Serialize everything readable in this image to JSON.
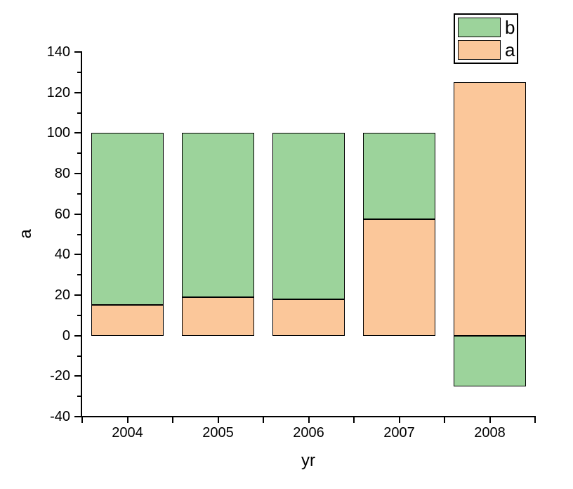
{
  "figure": {
    "background": "#ffffff",
    "text_color": "#000000"
  },
  "chart_data": {
    "type": "bar",
    "stacked": true,
    "title": "",
    "xlabel": "yr",
    "ylabel": "a",
    "categories": [
      "2004",
      "2005",
      "2006",
      "2007",
      "2008"
    ],
    "series": [
      {
        "name": "a",
        "color": "#FBC79A",
        "values": [
          15,
          19,
          18,
          57.5,
          125
        ]
      },
      {
        "name": "b",
        "color": "#9CD39B",
        "values": [
          85,
          81,
          82,
          42.5,
          -25
        ]
      }
    ],
    "ylim": [
      -40,
      140
    ],
    "y_ticks": [
      -40,
      -20,
      0,
      20,
      40,
      60,
      80,
      100,
      120,
      140
    ],
    "y_tick_labels": [
      "-40",
      "-20",
      "0",
      "20",
      "40",
      "60",
      "80",
      "100",
      "120",
      "140"
    ],
    "y_minor_step": 10,
    "grid": false,
    "bar_width_fraction": 0.8,
    "bar_border_color": "#000000",
    "axis_color": "#000000",
    "legend": {
      "position": "top-right",
      "entries": [
        {
          "label": "b",
          "color": "#9CD39B"
        },
        {
          "label": "a",
          "color": "#FBC79A"
        }
      ]
    }
  }
}
